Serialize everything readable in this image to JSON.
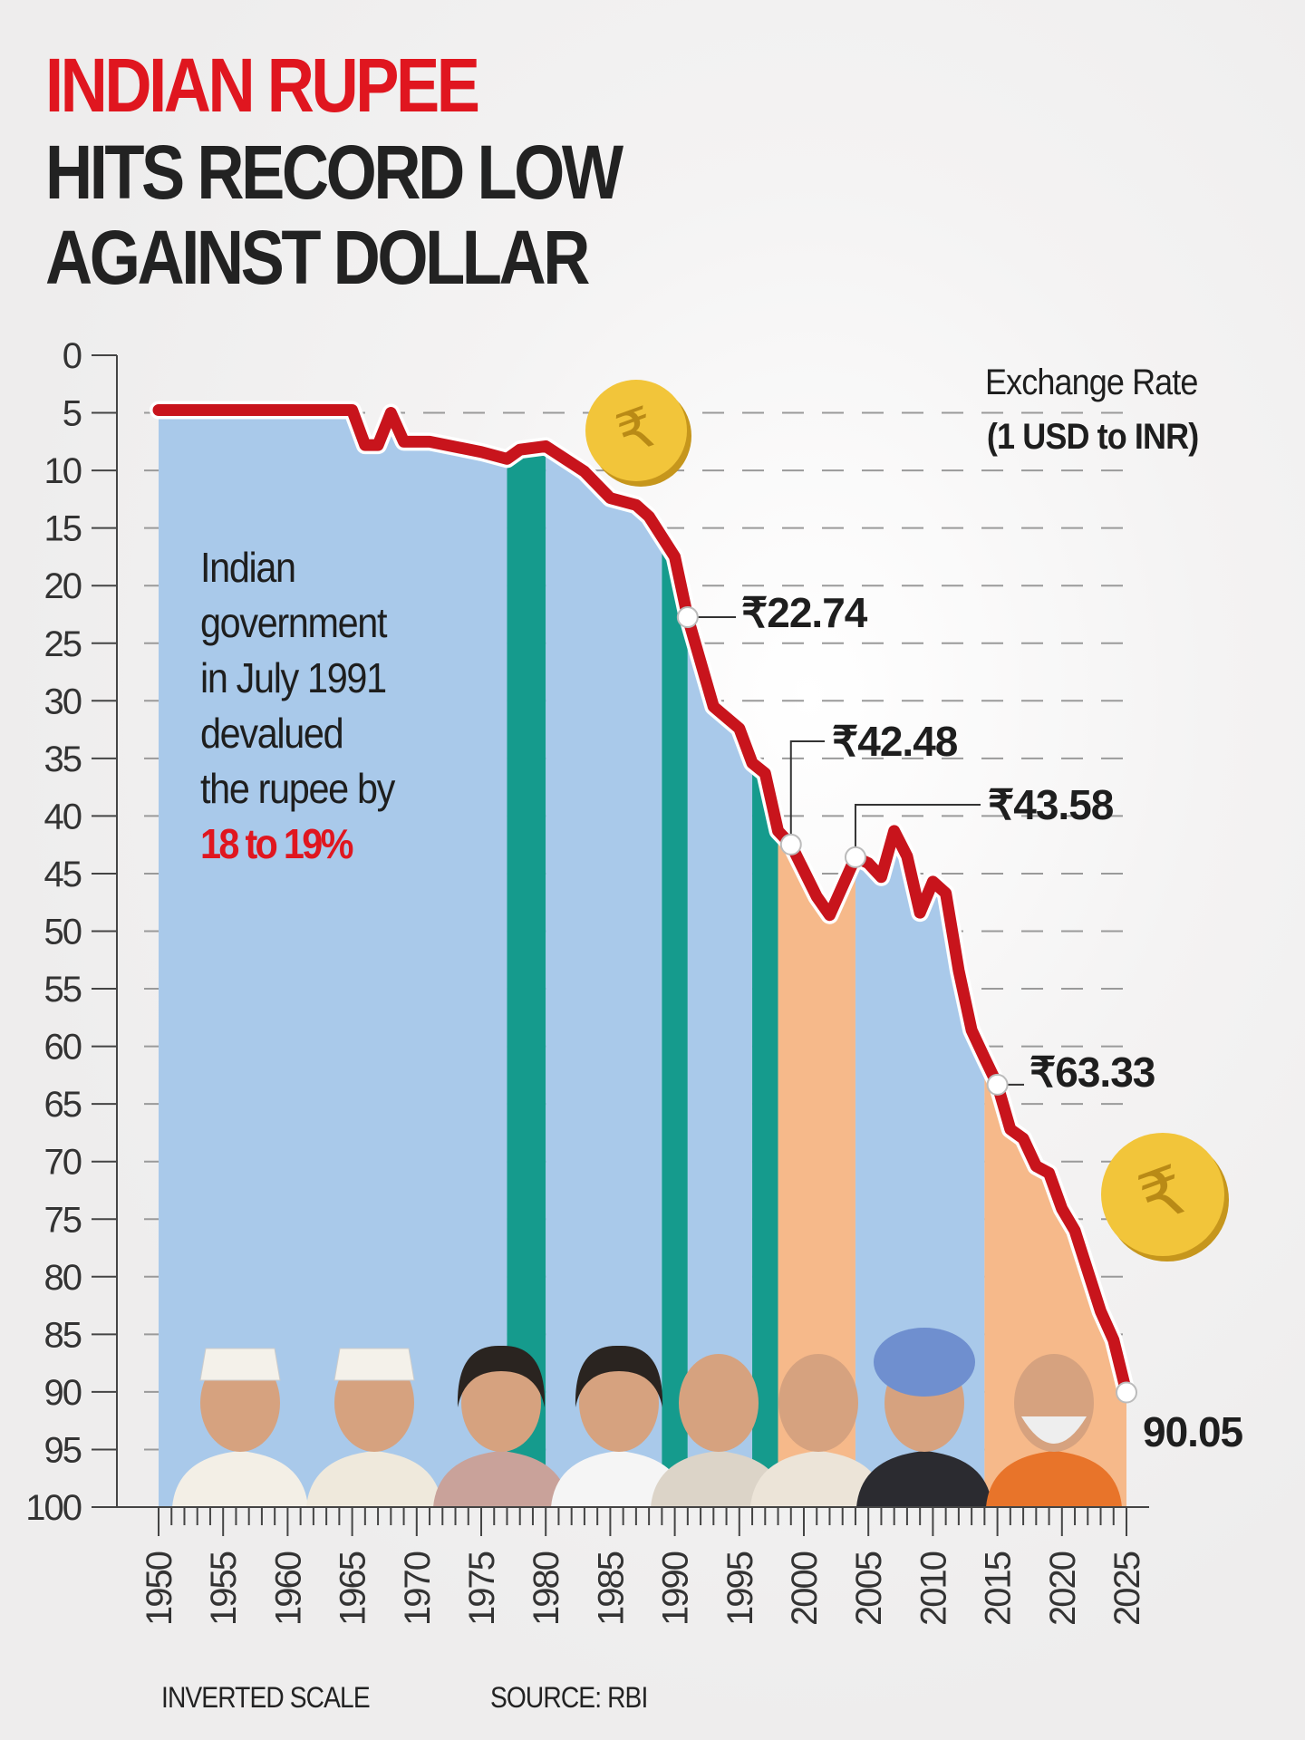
{
  "title": {
    "line1": "INDIAN RUPEE",
    "line2": "HITS RECORD LOW",
    "line3": "AGAINST DOLLAR"
  },
  "colors": {
    "title_red": "#e0161f",
    "line": "#c8141c",
    "blue_era": "#a9c9ea",
    "teal_era": "#159b8d",
    "orange_era": "#f6b98a",
    "coin": "#f2c53a"
  },
  "chart_data": {
    "type": "line",
    "ylabel": "Exchange Rate",
    "ylabel_sub": "(1 USD to INR)",
    "y_inverted": true,
    "ylim": [
      0,
      100
    ],
    "xlim": [
      1950,
      2025
    ],
    "y_ticks": [
      "0",
      "5",
      "10",
      "15",
      "20",
      "25",
      "30",
      "35",
      "40",
      "45",
      "50",
      "55",
      "60",
      "65",
      "70",
      "75",
      "80",
      "85",
      "90",
      "95",
      "100"
    ],
    "x_ticks": [
      "1950",
      "1955",
      "1960",
      "1965",
      "1970",
      "1975",
      "1980",
      "1985",
      "1990",
      "1995",
      "2000",
      "2005",
      "2010",
      "2015",
      "2020",
      "2025"
    ],
    "grid": "dashed horizontal",
    "series": [
      {
        "x": [
          1950,
          1955,
          1960,
          1965,
          1966,
          1967,
          1968,
          1969,
          1971,
          1975,
          1977,
          1978,
          1980,
          1983,
          1985,
          1987,
          1988,
          1990,
          1991,
          1993,
          1995,
          1996,
          1997,
          1998,
          1999,
          2001,
          2002,
          2004,
          2005,
          2006,
          2007,
          2008,
          2009,
          2010,
          2011,
          2012,
          2013,
          2014,
          2015,
          2016,
          2017,
          2018,
          2019,
          2020,
          2021,
          2022,
          2023,
          2024,
          2025
        ],
        "y": [
          4.76,
          4.76,
          4.76,
          4.76,
          7.8,
          7.8,
          5.0,
          7.5,
          7.5,
          8.4,
          9.0,
          8.2,
          7.9,
          10.1,
          12.4,
          13.0,
          14.0,
          17.5,
          22.74,
          30.5,
          32.4,
          35.4,
          36.3,
          41.3,
          42.48,
          47.0,
          48.6,
          43.58,
          44.1,
          45.3,
          41.3,
          43.5,
          48.4,
          45.7,
          46.7,
          53.4,
          58.6,
          61.0,
          63.33,
          67.2,
          68.0,
          70.4,
          71.0,
          74.1,
          76.0,
          79.5,
          83.0,
          85.5,
          90.05
        ]
      }
    ],
    "eras": [
      {
        "start": 1950,
        "end": 1977,
        "color": "blue"
      },
      {
        "start": 1977,
        "end": 1980,
        "color": "teal"
      },
      {
        "start": 1980,
        "end": 1989,
        "color": "blue"
      },
      {
        "start": 1989,
        "end": 1991,
        "color": "teal"
      },
      {
        "start": 1991,
        "end": 1996,
        "color": "blue"
      },
      {
        "start": 1996,
        "end": 1998,
        "color": "teal"
      },
      {
        "start": 1998,
        "end": 2004,
        "color": "orange"
      },
      {
        "start": 2004,
        "end": 2014,
        "color": "blue"
      },
      {
        "start": 2014,
        "end": 2025,
        "color": "orange"
      }
    ],
    "annotations": [
      {
        "label": "₹22.74",
        "x": 1991,
        "y": 22.74
      },
      {
        "label": "₹42.48",
        "x": 1999,
        "y": 42.48
      },
      {
        "label": "₹43.58",
        "x": 2004,
        "y": 43.58
      },
      {
        "label": "₹63.33",
        "x": 2015,
        "y": 63.33
      },
      {
        "label": "90.05",
        "x": 2025,
        "y": 90.05
      }
    ],
    "note": {
      "text": [
        "Indian",
        "government",
        "in July 1991",
        "devalued",
        "the rupee by"
      ],
      "highlight": "18 to 19%"
    }
  },
  "footer": {
    "scale_note": "INVERTED SCALE",
    "source": "SOURCE: RBI"
  }
}
